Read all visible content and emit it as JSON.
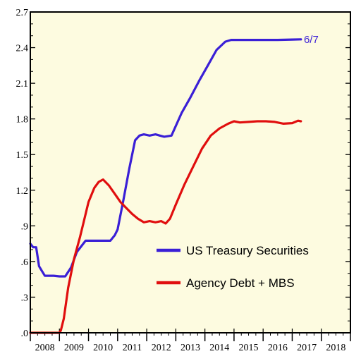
{
  "chart_data": {
    "type": "line",
    "title": "",
    "xlabel": "",
    "ylabel": "",
    "xlim": [
      2008,
      2019
    ],
    "ylim": [
      0,
      2.7
    ],
    "x_ticks": [
      "2008",
      "2009",
      "2010",
      "2011",
      "2012",
      "2013",
      "2014",
      "2015",
      "2016",
      "2017",
      "2018"
    ],
    "y_ticks": [
      {
        "value": 0.0,
        "label": ".0"
      },
      {
        "value": 0.3,
        "label": ".3"
      },
      {
        "value": 0.6,
        "label": ".6"
      },
      {
        "value": 0.9,
        "label": ".9"
      },
      {
        "value": 1.2,
        "label": "1.2"
      },
      {
        "value": 1.5,
        "label": "1.5"
      },
      {
        "value": 1.8,
        "label": "1.8"
      },
      {
        "value": 2.1,
        "label": "2.1"
      },
      {
        "value": 2.4,
        "label": "2.4"
      },
      {
        "value": 2.7,
        "label": "2.7"
      }
    ],
    "legend_position": "center-right",
    "background_color": "#fdfbe0",
    "grid": false,
    "annotations": [
      {
        "text": "6/7",
        "x": 2017.4,
        "y": 2.47,
        "color": "#3a1fd6"
      }
    ],
    "series": [
      {
        "name": "US Treasury Securities",
        "color": "#3a1fd6",
        "points": [
          [
            2008.0,
            0.75
          ],
          [
            2008.1,
            0.72
          ],
          [
            2008.2,
            0.72
          ],
          [
            2008.3,
            0.56
          ],
          [
            2008.4,
            0.52
          ],
          [
            2008.5,
            0.48
          ],
          [
            2008.8,
            0.48
          ],
          [
            2009.0,
            0.475
          ],
          [
            2009.2,
            0.475
          ],
          [
            2009.4,
            0.55
          ],
          [
            2009.6,
            0.68
          ],
          [
            2009.9,
            0.775
          ],
          [
            2010.2,
            0.775
          ],
          [
            2010.5,
            0.775
          ],
          [
            2010.75,
            0.775
          ],
          [
            2010.9,
            0.82
          ],
          [
            2011.0,
            0.87
          ],
          [
            2011.2,
            1.12
          ],
          [
            2011.4,
            1.38
          ],
          [
            2011.6,
            1.62
          ],
          [
            2011.75,
            1.66
          ],
          [
            2011.9,
            1.67
          ],
          [
            2012.1,
            1.66
          ],
          [
            2012.3,
            1.67
          ],
          [
            2012.45,
            1.66
          ],
          [
            2012.6,
            1.65
          ],
          [
            2012.85,
            1.66
          ],
          [
            2013.2,
            1.85
          ],
          [
            2013.5,
            1.98
          ],
          [
            2013.8,
            2.12
          ],
          [
            2014.1,
            2.25
          ],
          [
            2014.4,
            2.38
          ],
          [
            2014.7,
            2.45
          ],
          [
            2014.9,
            2.465
          ],
          [
            2015.2,
            2.465
          ],
          [
            2016.0,
            2.465
          ],
          [
            2016.5,
            2.465
          ],
          [
            2017.0,
            2.468
          ],
          [
            2017.3,
            2.47
          ]
        ]
      },
      {
        "name": "Agency Debt + MBS",
        "color": "#e00e0e",
        "points": [
          [
            2008.0,
            0.0
          ],
          [
            2008.5,
            0.0
          ],
          [
            2009.0,
            0.0
          ],
          [
            2009.05,
            0.02
          ],
          [
            2009.15,
            0.12
          ],
          [
            2009.3,
            0.38
          ],
          [
            2009.5,
            0.62
          ],
          [
            2009.7,
            0.8
          ],
          [
            2009.85,
            0.95
          ],
          [
            2010.0,
            1.1
          ],
          [
            2010.2,
            1.22
          ],
          [
            2010.35,
            1.27
          ],
          [
            2010.5,
            1.29
          ],
          [
            2010.7,
            1.24
          ],
          [
            2010.9,
            1.17
          ],
          [
            2011.1,
            1.1
          ],
          [
            2011.3,
            1.05
          ],
          [
            2011.5,
            1.0
          ],
          [
            2011.7,
            0.96
          ],
          [
            2011.9,
            0.93
          ],
          [
            2012.1,
            0.94
          ],
          [
            2012.3,
            0.93
          ],
          [
            2012.5,
            0.94
          ],
          [
            2012.65,
            0.92
          ],
          [
            2012.8,
            0.96
          ],
          [
            2013.0,
            1.08
          ],
          [
            2013.3,
            1.25
          ],
          [
            2013.6,
            1.4
          ],
          [
            2013.9,
            1.55
          ],
          [
            2014.2,
            1.66
          ],
          [
            2014.5,
            1.72
          ],
          [
            2014.8,
            1.76
          ],
          [
            2015.0,
            1.78
          ],
          [
            2015.2,
            1.77
          ],
          [
            2015.5,
            1.775
          ],
          [
            2015.8,
            1.78
          ],
          [
            2016.1,
            1.78
          ],
          [
            2016.4,
            1.775
          ],
          [
            2016.7,
            1.76
          ],
          [
            2017.0,
            1.765
          ],
          [
            2017.2,
            1.785
          ],
          [
            2017.3,
            1.78
          ]
        ]
      }
    ]
  }
}
